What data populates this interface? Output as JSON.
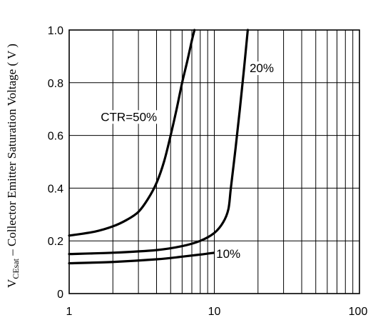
{
  "chart_data": {
    "type": "line",
    "xscale": "log",
    "xlim": [
      1,
      100
    ],
    "ylim": [
      0,
      1.0
    ],
    "grid": true,
    "ylabel_main": "V",
    "ylabel_sub": "CEsat",
    "ylabel_rest": " – Collector Emitter Saturation Voltage ( V )",
    "x_ticks": [
      {
        "value": 1,
        "label": "1"
      },
      {
        "value": 10,
        "label": "10"
      },
      {
        "value": 100,
        "label": "100"
      }
    ],
    "y_ticks": [
      {
        "value": 0,
        "label": "0"
      },
      {
        "value": 0.2,
        "label": "0.2"
      },
      {
        "value": 0.4,
        "label": "0.4"
      },
      {
        "value": 0.6,
        "label": "0.6"
      },
      {
        "value": 0.8,
        "label": "0.8"
      },
      {
        "value": 1.0,
        "label": "1.0"
      }
    ],
    "series": [
      {
        "name": "CTR=50%",
        "x": [
          1,
          1.5,
          2,
          2.5,
          3,
          3.5,
          4,
          4.5,
          5,
          5.5,
          6,
          6.5,
          7,
          7.3
        ],
        "y": [
          0.22,
          0.235,
          0.255,
          0.28,
          0.31,
          0.36,
          0.42,
          0.5,
          0.6,
          0.7,
          0.8,
          0.88,
          0.96,
          1.0
        ]
      },
      {
        "name": "20%",
        "x": [
          1,
          2,
          4,
          6,
          8,
          10,
          11.5,
          12.5,
          13,
          14,
          15,
          16,
          17
        ],
        "y": [
          0.15,
          0.155,
          0.165,
          0.18,
          0.2,
          0.23,
          0.27,
          0.32,
          0.4,
          0.55,
          0.7,
          0.85,
          1.0
        ]
      },
      {
        "name": "10%",
        "x": [
          1,
          2,
          4,
          6,
          8,
          10
        ],
        "y": [
          0.115,
          0.12,
          0.13,
          0.14,
          0.148,
          0.155
        ]
      }
    ],
    "annotations": [
      {
        "text": "CTR=50%",
        "x": 1.65,
        "y": 0.655
      },
      {
        "text": "20%",
        "x": 17.5,
        "y": 0.84
      },
      {
        "text": "10%",
        "x": 10.3,
        "y": 0.135
      }
    ]
  }
}
